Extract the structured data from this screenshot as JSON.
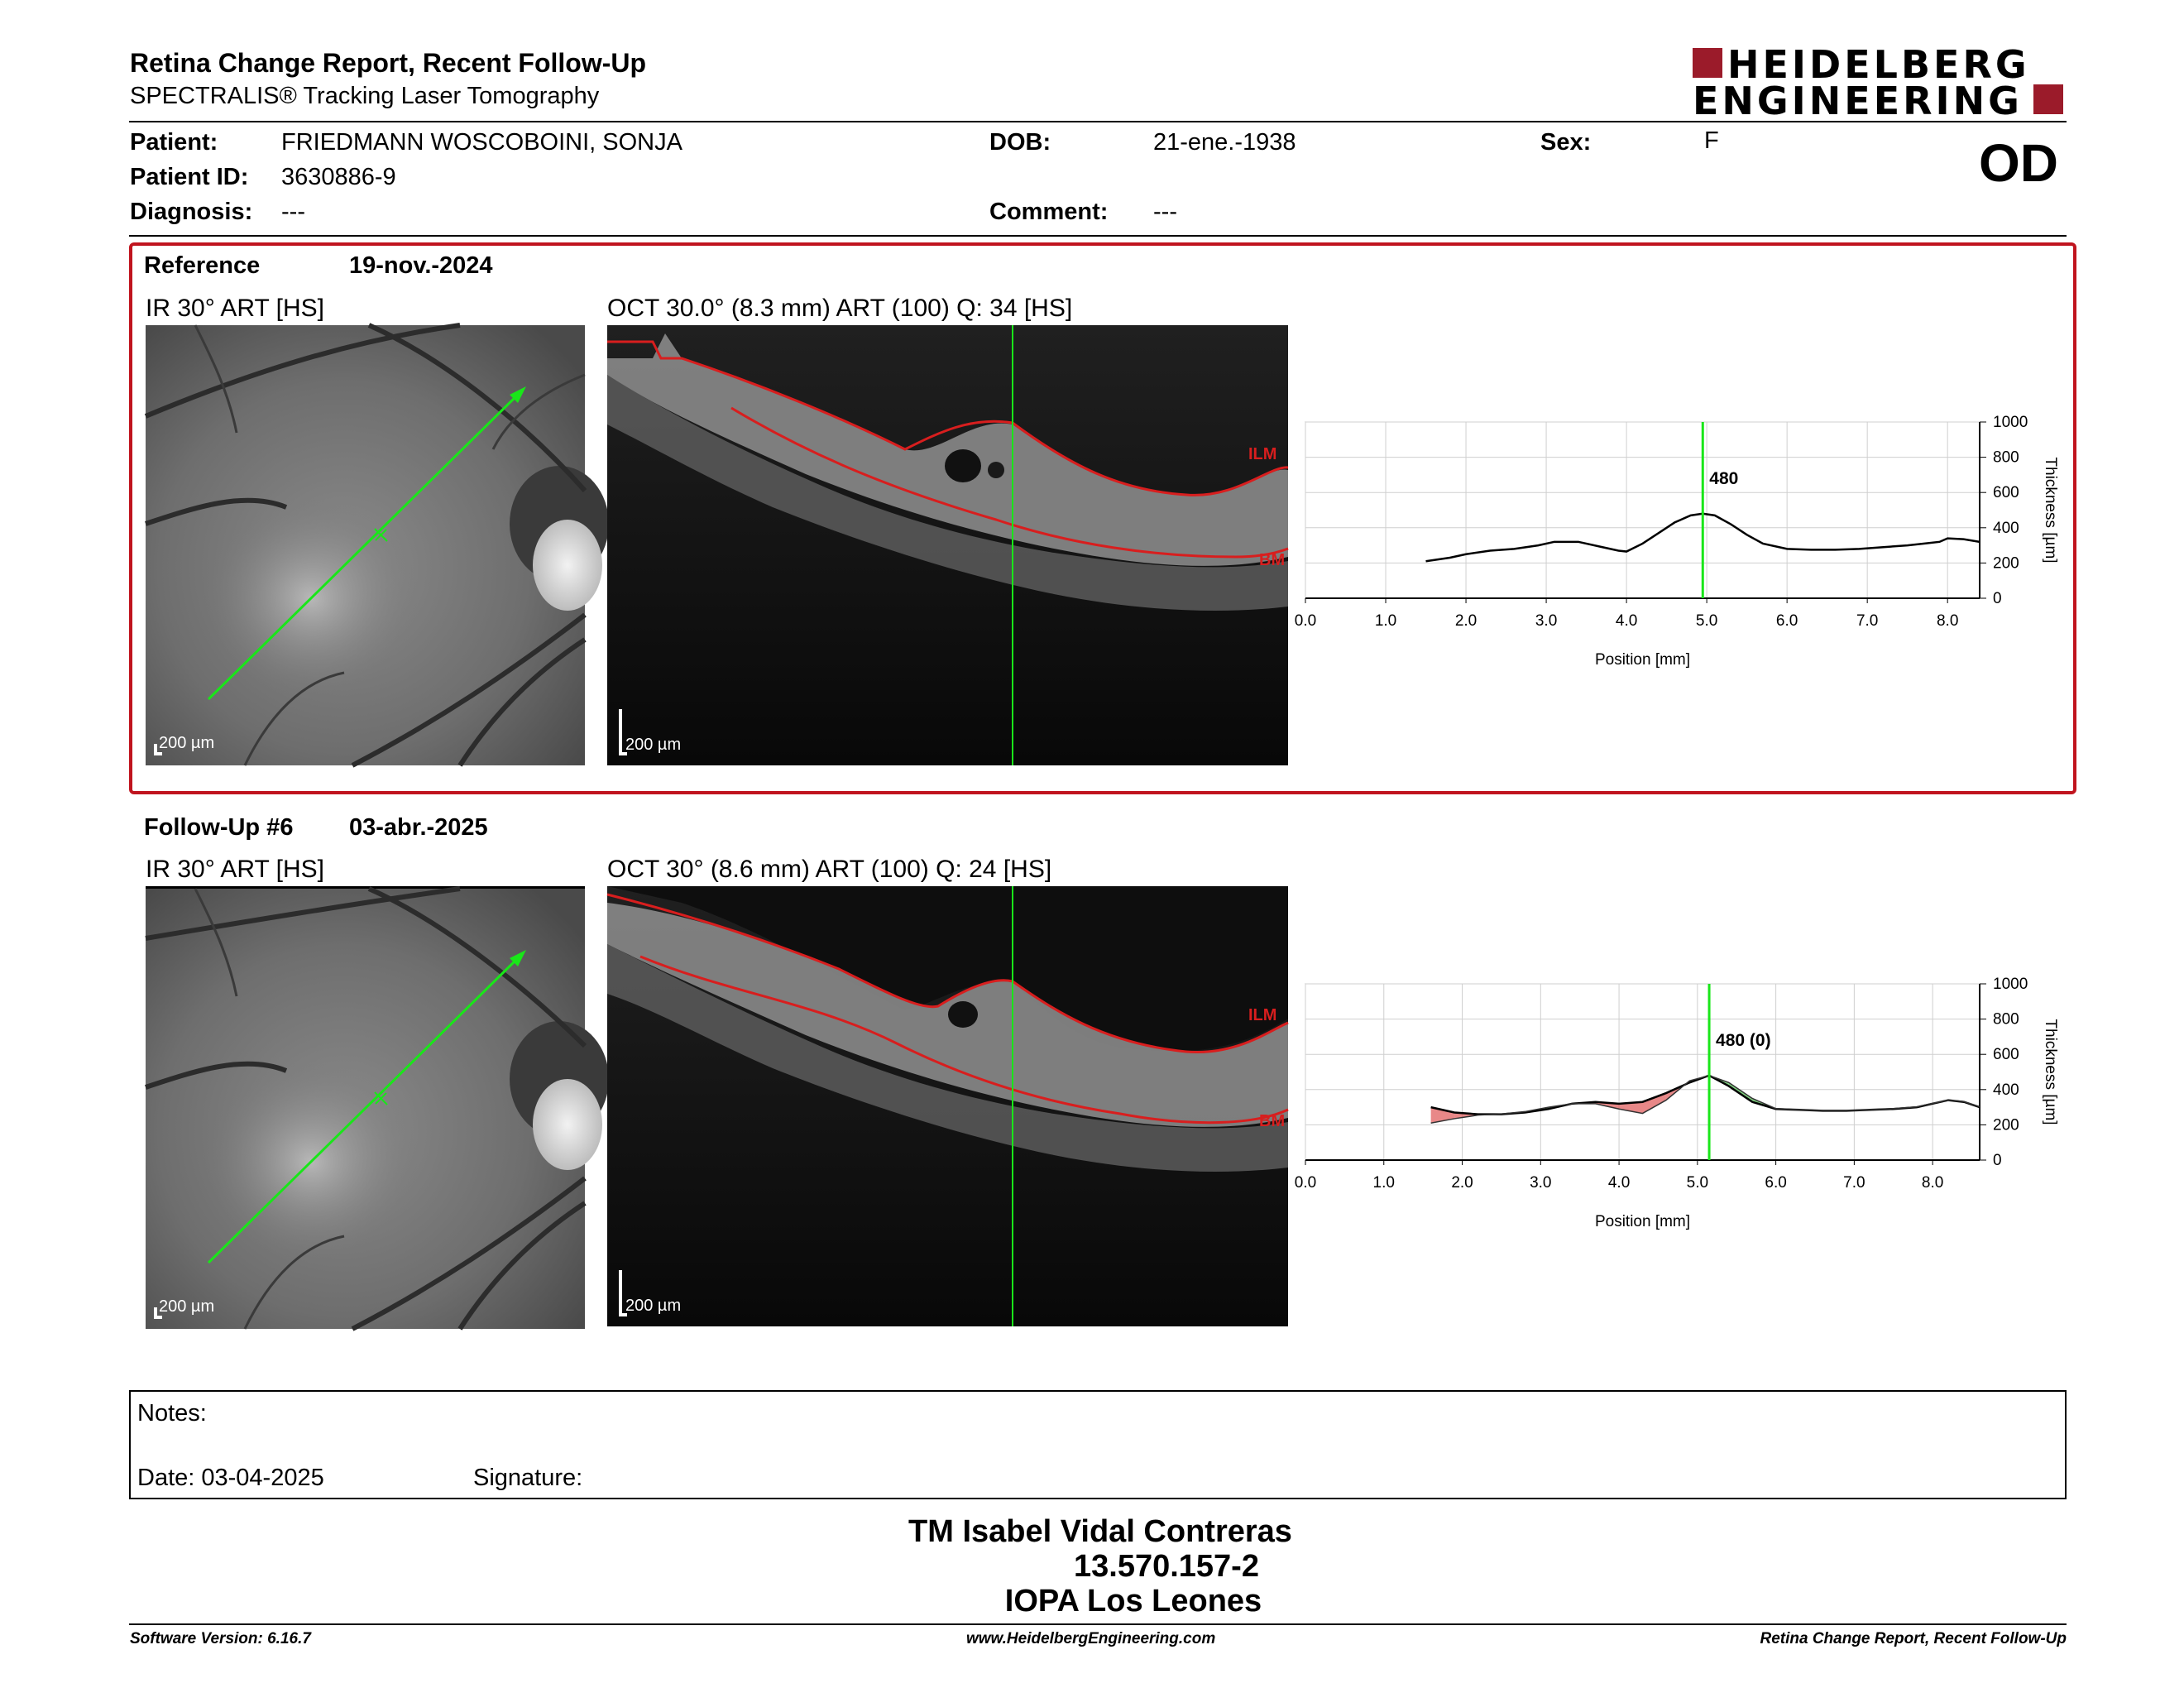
{
  "header": {
    "title": "Retina Change Report, Recent Follow-Up",
    "subtitle": "SPECTRALIS® Tracking Laser Tomography",
    "logo_line1": "HEIDELBERG",
    "logo_line2": "ENGINEERING",
    "eye": "OD"
  },
  "patient": {
    "name_label": "Patient:",
    "name": "FRIEDMANN WOSCOBOINI,  SONJA",
    "id_label": "Patient ID:",
    "id": "3630886-9",
    "diagnosis_label": "Diagnosis:",
    "diagnosis": "---",
    "dob_label": "DOB:",
    "dob": "21-ene.-1938",
    "comment_label": "Comment:",
    "comment": "---",
    "sex_label": "Sex:",
    "sex": "F"
  },
  "reference": {
    "label": "Reference",
    "date": "19-nov.-2024",
    "ir_title": "IR 30° ART [HS]",
    "oct_title": "OCT 30.0° (8.3 mm) ART (100) Q: 34 [HS]",
    "ir_scale": "200 µm",
    "oct_scale": "200 µm",
    "ilm_label": "ILM",
    "bm_label": "BM"
  },
  "followup": {
    "label": "Follow-Up #6",
    "date": "03-abr.-2025",
    "ir_title": "IR 30° ART [HS]",
    "oct_title": "OCT 30° (8.6 mm) ART (100) Q: 24 [HS]",
    "ir_scale": "200 µm",
    "oct_scale": "200 µm",
    "ilm_label": "ILM",
    "bm_label": "BM"
  },
  "chart_data": [
    {
      "type": "line",
      "ylabel": "Thickness [µm]",
      "xlabel": "Position [mm]",
      "xlim": [
        0,
        8.4
      ],
      "ylim": [
        0,
        1000
      ],
      "x_ticks": [
        "0.0",
        "1.0",
        "2.0",
        "3.0",
        "4.0",
        "5.0",
        "6.0",
        "7.0",
        "8.0"
      ],
      "y_ticks": [
        "0",
        "200",
        "400",
        "600",
        "800",
        "1000"
      ],
      "cursor_x": 4.95,
      "cursor_label": "480",
      "grid": true,
      "series": [
        {
          "x": [
            1.5,
            1.8,
            2.0,
            2.3,
            2.6,
            2.9,
            3.1,
            3.4,
            3.7,
            3.9,
            4.0,
            4.2,
            4.4,
            4.6,
            4.8,
            4.95,
            5.1,
            5.3,
            5.5,
            5.7,
            6.0,
            6.3,
            6.6,
            6.9,
            7.2,
            7.5,
            7.7,
            7.9,
            8.0,
            8.2,
            8.4
          ],
          "values": [
            210,
            230,
            250,
            270,
            280,
            300,
            320,
            320,
            290,
            270,
            265,
            310,
            370,
            430,
            470,
            480,
            470,
            420,
            360,
            310,
            280,
            275,
            275,
            280,
            290,
            300,
            310,
            320,
            340,
            335,
            320
          ]
        }
      ]
    },
    {
      "type": "line",
      "ylabel": "Thickness [µm]",
      "xlabel": "Position [mm]",
      "xlim": [
        0,
        8.6
      ],
      "ylim": [
        0,
        1000
      ],
      "x_ticks": [
        "0.0",
        "1.0",
        "2.0",
        "3.0",
        "4.0",
        "5.0",
        "6.0",
        "7.0",
        "8.0"
      ],
      "y_ticks": [
        "0",
        "200",
        "400",
        "600",
        "800",
        "1000"
      ],
      "cursor_x": 5.15,
      "cursor_label": "480 (0)",
      "grid": true,
      "series": [
        {
          "x": [
            1.6,
            1.9,
            2.2,
            2.5,
            2.8,
            3.1,
            3.4,
            3.7,
            4.0,
            4.3,
            4.6,
            4.9,
            5.15,
            5.4,
            5.7,
            6.0,
            6.3,
            6.6,
            6.9,
            7.2,
            7.5,
            7.8,
            8.0,
            8.2,
            8.4,
            8.6
          ],
          "values": [
            300,
            270,
            260,
            260,
            270,
            290,
            320,
            330,
            320,
            330,
            380,
            440,
            480,
            420,
            330,
            290,
            285,
            280,
            280,
            285,
            290,
            300,
            320,
            340,
            330,
            300
          ]
        },
        {
          "x": [
            1.6,
            1.9,
            2.2,
            2.5,
            2.8,
            3.1,
            3.4,
            3.7,
            4.0,
            4.3,
            4.6,
            4.9,
            5.15,
            5.4,
            5.7,
            6.0,
            6.3,
            6.6,
            6.9,
            7.2,
            7.5,
            7.8,
            8.0,
            8.2,
            8.4,
            8.6
          ],
          "values": [
            210,
            235,
            255,
            262,
            275,
            300,
            320,
            320,
            290,
            265,
            340,
            450,
            480,
            440,
            350,
            292,
            286,
            281,
            281,
            286,
            292,
            302,
            322,
            340,
            332,
            302
          ]
        }
      ]
    }
  ],
  "notes": {
    "label": "Notes:",
    "date": "Date: 03-04-2025",
    "signature": "Signature:"
  },
  "signature_block": {
    "line1": "TM Isabel Vidal Contreras",
    "line2": "13.570.157-2",
    "line3": "IOPA Los Leones"
  },
  "footer": {
    "left": "Software Version: 6.16.7",
    "center": "www.HeidelbergEngineering.com",
    "right": "Retina Change Report, Recent Follow-Up"
  },
  "colors": {
    "accent_red": "#c0141e",
    "scan_green": "#19e619",
    "thickness_red": "#e06060"
  }
}
